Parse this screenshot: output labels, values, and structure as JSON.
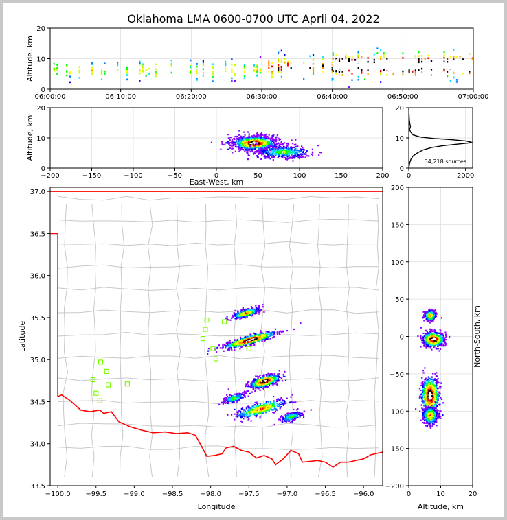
{
  "title": "Oklahoma LMA 0600-0700 UTC April 04, 2022",
  "colors": {
    "frame": "#c8c8c8",
    "state_border": "#ff0000",
    "county_lines": "#c8c8c8",
    "station_marker": "#7cfc00",
    "grid": "#dddddd"
  },
  "chart_data": [
    {
      "id": "time-altitude",
      "type": "heatmap",
      "ylabel": "Altitude, km",
      "xlabel": "",
      "xticks": [
        "06:00:00",
        "06:10:00",
        "06:20:00",
        "06:30:00",
        "06:40:00",
        "06:50:00",
        "07:00:00"
      ],
      "ylim": [
        0,
        20
      ],
      "yticks": [
        0,
        10,
        20
      ],
      "grid": true,
      "bands": [
        {
          "from": "06:00",
          "to": "06:30",
          "alt_center_km": 6.5,
          "alt_spread_km": 2.5,
          "density": "low"
        },
        {
          "from": "06:30",
          "to": "06:40",
          "alt_center_km": 7.5,
          "alt_spread_km": 3.0,
          "density": "medium"
        },
        {
          "from": "06:40",
          "to": "07:00",
          "alt_center_km": 8.0,
          "alt_spread_km": 3.5,
          "density": "high"
        }
      ]
    },
    {
      "id": "eastwest-altitude",
      "type": "heatmap",
      "xlabel": "East-West, km",
      "ylabel": "Altitude, km",
      "xlim": [
        -200,
        200
      ],
      "xticks": [
        "−200",
        "−150",
        "−100",
        "−50",
        "0",
        "50",
        "100",
        "150",
        "200"
      ],
      "ylim": [
        0,
        20
      ],
      "yticks": [
        0,
        10,
        20
      ],
      "grid": true,
      "clusters": [
        {
          "x_km": 45,
          "alt_km": 8.5,
          "x_spread_km": 25,
          "alt_spread_km": 2.2,
          "density": "high"
        },
        {
          "x_km": 80,
          "alt_km": 5.5,
          "x_spread_km": 30,
          "alt_spread_km": 1.8,
          "density": "low"
        }
      ]
    },
    {
      "id": "altitude-histogram",
      "type": "line",
      "xlim": [
        0,
        2250
      ],
      "xticks": [
        "0",
        "2000"
      ],
      "ylim": [
        0,
        20
      ],
      "yticks": [
        0,
        10,
        20
      ],
      "annotation": "34,218 sources",
      "series": [
        {
          "x": [
            0,
            20,
            40,
            80,
            150,
            300,
            500,
            800,
            1200,
            1700,
            2100,
            2200,
            2000,
            1500,
            900,
            400,
            150,
            60,
            30,
            60,
            40,
            20,
            10,
            0
          ],
          "y": [
            0,
            1,
            2,
            3,
            4,
            5,
            6,
            6.8,
            7.4,
            7.9,
            8.3,
            8.6,
            9.0,
            9.4,
            9.8,
            10.3,
            11.0,
            12.0,
            12.8,
            13.8,
            14.5,
            16,
            18,
            20
          ]
        }
      ]
    },
    {
      "id": "plan-view-map",
      "type": "scatter",
      "xlabel": "Longitude",
      "ylabel": "Latitude",
      "xlim": [
        -100.1,
        -95.75
      ],
      "xticks": [
        "−100.0",
        "−99.5",
        "−99.0",
        "−98.5",
        "−98.0",
        "−97.5",
        "−97.0",
        "−96.5",
        "−96.0"
      ],
      "ylim": [
        33.5,
        37.05
      ],
      "yticks": [
        "33.5",
        "34.0",
        "34.5",
        "35.0",
        "35.5",
        "36.0",
        "36.5",
        "37.0"
      ],
      "stations": [
        {
          "lon": -98.05,
          "lat": 35.47
        },
        {
          "lon": -97.82,
          "lat": 35.45
        },
        {
          "lon": -98.07,
          "lat": 35.36
        },
        {
          "lon": -98.1,
          "lat": 35.25
        },
        {
          "lon": -97.97,
          "lat": 35.13
        },
        {
          "lon": -97.93,
          "lat": 35.01
        },
        {
          "lon": -97.5,
          "lat": 35.13
        },
        {
          "lon": -99.44,
          "lat": 34.97
        },
        {
          "lon": -99.36,
          "lat": 34.86
        },
        {
          "lon": -99.54,
          "lat": 34.76
        },
        {
          "lon": -99.34,
          "lat": 34.7
        },
        {
          "lon": -99.09,
          "lat": 34.71
        },
        {
          "lon": -99.5,
          "lat": 34.6
        },
        {
          "lon": -99.45,
          "lat": 34.51
        }
      ],
      "source_clusters": [
        {
          "lon": -97.5,
          "lat": 35.24,
          "lon_spread": 0.32,
          "lat_spread": 0.05,
          "density": "high"
        },
        {
          "lon": -97.55,
          "lat": 35.56,
          "lon_spread": 0.16,
          "lat_spread": 0.04,
          "density": "medium"
        },
        {
          "lon": -97.3,
          "lat": 34.75,
          "lon_spread": 0.18,
          "lat_spread": 0.06,
          "density": "high"
        },
        {
          "lon": -97.7,
          "lat": 34.55,
          "lon_spread": 0.12,
          "lat_spread": 0.04,
          "density": "low"
        },
        {
          "lon": -97.35,
          "lat": 34.42,
          "lon_spread": 0.3,
          "lat_spread": 0.07,
          "density": "medium"
        },
        {
          "lon": -96.95,
          "lat": 34.33,
          "lon_spread": 0.12,
          "lat_spread": 0.04,
          "density": "low"
        }
      ]
    },
    {
      "id": "northsouth-altitude",
      "type": "heatmap",
      "xlabel": "Altitude, km",
      "ylabel": "North-South, km",
      "xlim": [
        0,
        20
      ],
      "xticks": [
        "0",
        "10",
        "20"
      ],
      "ylim": [
        -200,
        200
      ],
      "yticks": [
        "−200",
        "−150",
        "−100",
        "−50",
        "0",
        "50",
        "100",
        "150",
        "200"
      ],
      "grid": true,
      "clusters": [
        {
          "alt_km": 7.5,
          "ns_km": -3,
          "alt_spread_km": 3.0,
          "ns_spread_km": 9,
          "density": "high"
        },
        {
          "alt_km": 6.5,
          "ns_km": 29,
          "alt_spread_km": 1.5,
          "ns_spread_km": 6,
          "density": "medium"
        },
        {
          "alt_km": 6.5,
          "ns_km": -78,
          "alt_spread_km": 2.5,
          "ns_spread_km": 22,
          "density": "high"
        },
        {
          "alt_km": 6.5,
          "ns_km": -105,
          "alt_spread_km": 2.0,
          "ns_spread_km": 10,
          "density": "medium"
        }
      ]
    }
  ]
}
